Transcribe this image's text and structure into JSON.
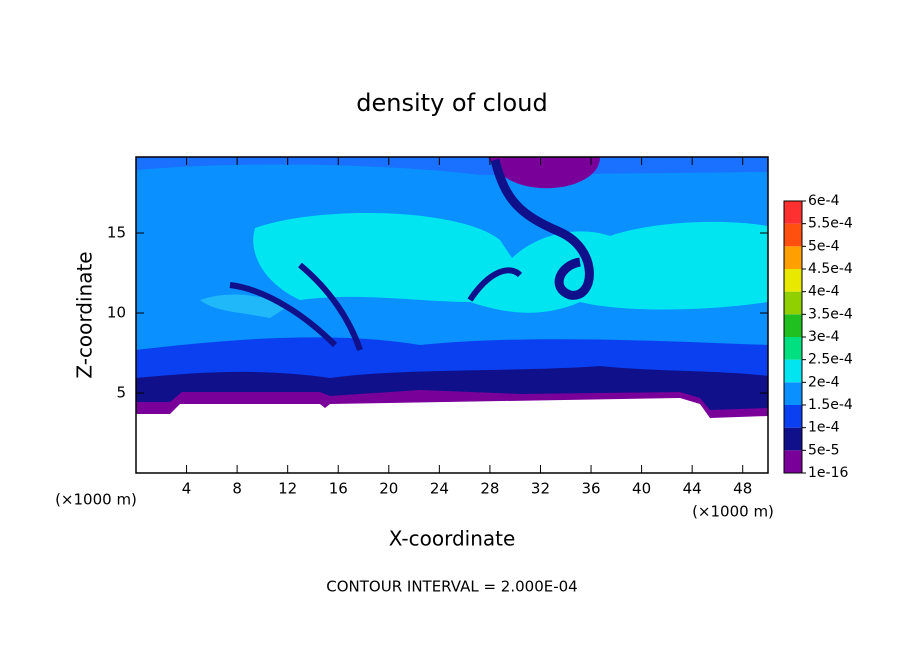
{
  "chart_data": {
    "type": "contour",
    "title": "density of cloud",
    "x_label": "X-coordinate",
    "y_label": "Z-coordinate",
    "x_unit_label": "(×1000 m)",
    "y_unit_label": "(×1000 m)",
    "footer": "CONTOUR INTERVAL = 2.000E-04",
    "xlim": [
      0,
      50
    ],
    "xticks": [
      4,
      8,
      12,
      16,
      20,
      24,
      28,
      32,
      36,
      40,
      44,
      48
    ],
    "ylim": [
      0,
      19.75
    ],
    "yticks": [
      5,
      10,
      15
    ],
    "colorbar": {
      "ticks": [
        {
          "value": 1e-16,
          "label": "1e-16"
        },
        {
          "value": 5e-05,
          "label": "5e-5"
        },
        {
          "value": 0.0001,
          "label": "1e-4"
        },
        {
          "value": 0.00015,
          "label": "1.5e-4"
        },
        {
          "value": 0.0002,
          "label": "2e-4"
        },
        {
          "value": 0.00025,
          "label": "2.5e-4"
        },
        {
          "value": 0.0003,
          "label": "3e-4"
        },
        {
          "value": 0.00035,
          "label": "3.5e-4"
        },
        {
          "value": 0.0004,
          "label": "4e-4"
        },
        {
          "value": 0.00045,
          "label": "4.5e-4"
        },
        {
          "value": 0.0005,
          "label": "5e-4"
        },
        {
          "value": 0.00055,
          "label": "5.5e-4"
        },
        {
          "value": 0.0006,
          "label": "6e-4"
        }
      ],
      "colors": [
        "#7a009a",
        "#10108a",
        "#0a40f0",
        "#0a90ff",
        "#00e5f0",
        "#00e080",
        "#20c020",
        "#90d000",
        "#e8e800",
        "#ffa000",
        "#ff5010",
        "#ff3030"
      ]
    }
  }
}
